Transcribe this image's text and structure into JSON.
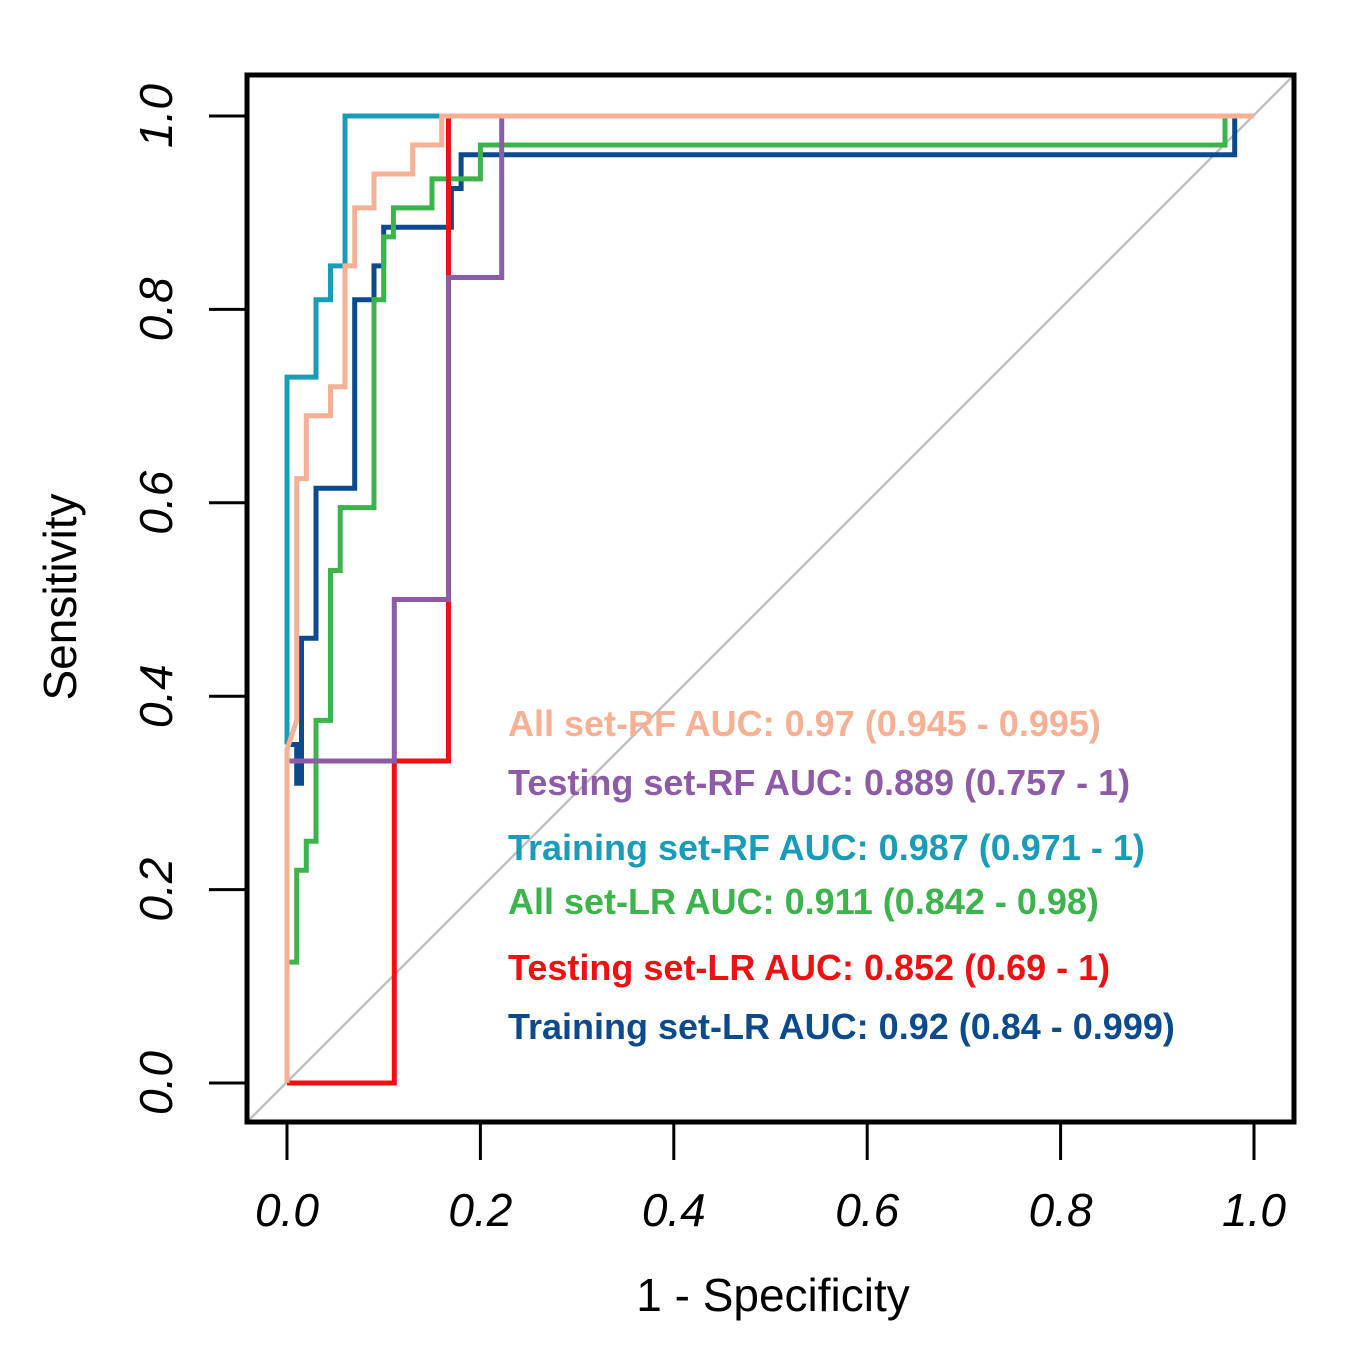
{
  "chart_data": {
    "type": "line",
    "xlabel": "1 - Specificity",
    "ylabel": "Sensitivity",
    "xlim": [
      0,
      1
    ],
    "ylim": [
      0,
      1
    ],
    "x_ticks": [
      "0.0",
      "0.2",
      "0.4",
      "0.6",
      "0.8",
      "1.0"
    ],
    "y_ticks": [
      "0.0",
      "0.2",
      "0.4",
      "0.6",
      "0.8",
      "1.0"
    ],
    "grid": false,
    "reference_line": {
      "from": [
        0,
        0
      ],
      "to": [
        1,
        1
      ],
      "color": "#c0c0c0"
    },
    "legend_position": "bottom-right",
    "series": [
      {
        "name": "Training set-LR",
        "legend_label": "Training set-LR AUC: 0.92 (0.84 - 0.999)",
        "color": "#0b4a8c",
        "x": [
          0.0,
          0.01,
          0.01,
          0.015,
          0.015,
          0.03,
          0.03,
          0.07,
          0.07,
          0.09,
          0.09,
          0.1,
          0.1,
          0.17,
          0.17,
          0.18,
          0.18,
          0.19,
          0.19,
          0.98,
          0.98,
          1.0
        ],
        "y": [
          0.35,
          0.35,
          0.31,
          0.31,
          0.46,
          0.46,
          0.615,
          0.615,
          0.81,
          0.81,
          0.845,
          0.845,
          0.885,
          0.885,
          0.925,
          0.925,
          0.96,
          0.96,
          0.96,
          0.96,
          1.0,
          1.0
        ]
      },
      {
        "name": "All set-LR",
        "legend_label": "All set-LR AUC: 0.911 (0.842 - 0.98)",
        "color": "#3cb44b",
        "x": [
          0.0,
          0.0,
          0.01,
          0.01,
          0.02,
          0.02,
          0.03,
          0.03,
          0.045,
          0.045,
          0.055,
          0.055,
          0.09,
          0.09,
          0.1,
          0.1,
          0.11,
          0.11,
          0.15,
          0.15,
          0.2,
          0.2,
          0.97,
          0.97,
          1.0
        ],
        "y": [
          0.0,
          0.125,
          0.125,
          0.22,
          0.22,
          0.25,
          0.25,
          0.375,
          0.375,
          0.53,
          0.53,
          0.595,
          0.595,
          0.81,
          0.81,
          0.875,
          0.875,
          0.905,
          0.905,
          0.935,
          0.935,
          0.97,
          0.97,
          1.0,
          1.0
        ]
      },
      {
        "name": "Testing set-LR",
        "legend_label": "Testing set-LR AUC: 0.852 (0.69 - 1)",
        "color": "#ee1111",
        "x": [
          0.0,
          0.111,
          0.111,
          0.167,
          0.167,
          0.167,
          1.0
        ],
        "y": [
          0.0,
          0.0,
          0.333,
          0.333,
          0.5,
          1.0,
          1.0
        ]
      },
      {
        "name": "Testing set-RF",
        "legend_label": "Testing set-RF AUC: 0.889 (0.757 - 1)",
        "color": "#8e5ba6",
        "x": [
          0.0,
          0.111,
          0.111,
          0.167,
          0.167,
          0.222,
          0.222,
          1.0
        ],
        "y": [
          0.333,
          0.333,
          0.5,
          0.5,
          0.833,
          0.833,
          1.0,
          1.0
        ]
      },
      {
        "name": "Training set-RF",
        "legend_label": "Training set-RF AUC: 0.987 (0.971 - 1)",
        "color": "#1a9cb8",
        "x": [
          0.0,
          0.0,
          0.03,
          0.03,
          0.045,
          0.045,
          0.06,
          0.06,
          1.0
        ],
        "y": [
          0.35,
          0.73,
          0.73,
          0.81,
          0.81,
          0.845,
          0.845,
          1.0,
          1.0
        ]
      },
      {
        "name": "All set-RF",
        "legend_label": "All set-RF AUC: 0.97 (0.945 - 0.995)",
        "color": "#f7b094",
        "x": [
          0.0,
          0.0,
          0.01,
          0.01,
          0.02,
          0.02,
          0.03,
          0.03,
          0.045,
          0.045,
          0.06,
          0.06,
          0.07,
          0.07,
          0.09,
          0.09,
          0.13,
          0.13,
          0.16,
          0.16,
          1.0
        ],
        "y": [
          0.0,
          0.345,
          0.375,
          0.625,
          0.625,
          0.69,
          0.69,
          0.69,
          0.69,
          0.72,
          0.72,
          0.845,
          0.845,
          0.905,
          0.905,
          0.94,
          0.94,
          0.97,
          0.97,
          1.0,
          1.0
        ]
      }
    ],
    "legend_order": [
      "All set-RF",
      "Testing set-RF",
      "Training set-RF",
      "All set-LR",
      "Testing set-LR",
      "Training set-LR"
    ]
  }
}
